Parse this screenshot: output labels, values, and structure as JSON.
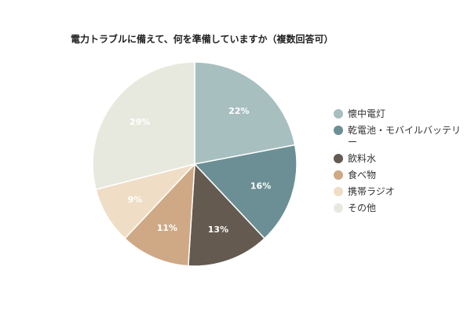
{
  "chart_data": {
    "type": "pie",
    "title": "電力トラブルに備えて、何を準備していますか（複数回答可）",
    "legend_position": "right",
    "slices": [
      {
        "label": "懐中電灯",
        "value": 22,
        "color": "#a8bfc0"
      },
      {
        "label": "乾電池・モバイルバッテリー",
        "value": 16,
        "color": "#6b8f94"
      },
      {
        "label": "飲料水",
        "value": 13,
        "color": "#655a50"
      },
      {
        "label": "食べ物",
        "value": 11,
        "color": "#cfa985"
      },
      {
        "label": "携帯ラジオ",
        "value": 9,
        "color": "#efdec5"
      },
      {
        "label": "その他",
        "value": 29,
        "color": "#e8e9de"
      }
    ],
    "value_suffix": "%"
  }
}
